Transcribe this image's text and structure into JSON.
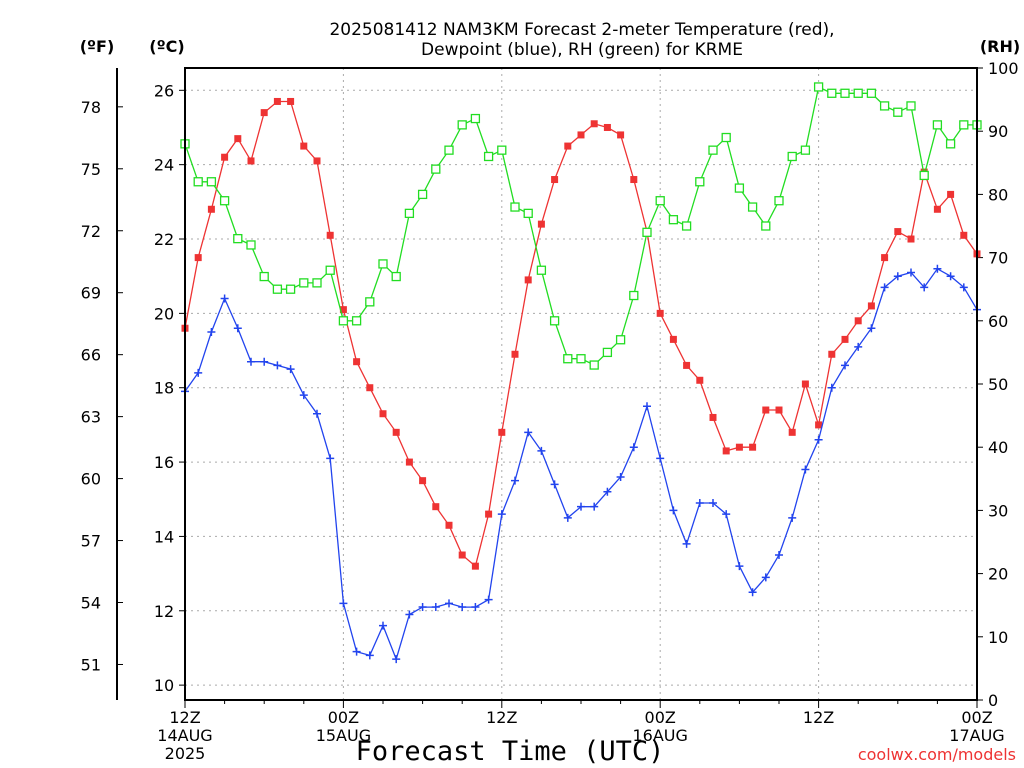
{
  "chart_data": {
    "type": "line",
    "title_line1": "2025081412 NAM3KM Forecast 2-meter Temperature (red),",
    "title_line2": "Dewpoint (blue), RH (green) for KRME",
    "xlabel": "Forecast Time (UTC)",
    "watermark": "coolwx.com/models",
    "unit_f": "(ºF)",
    "unit_c": "(ºC)",
    "unit_rh": "(RH)",
    "x_hours": [
      0,
      1,
      2,
      3,
      4,
      5,
      6,
      7,
      8,
      9,
      10,
      11,
      12,
      13,
      14,
      15,
      16,
      17,
      18,
      19,
      20,
      21,
      22,
      23,
      24,
      25,
      26,
      27,
      28,
      29,
      30,
      31,
      32,
      33,
      34,
      35,
      36,
      37,
      38,
      39,
      40,
      41,
      42,
      43,
      44,
      45,
      46,
      47,
      48,
      49,
      50,
      51,
      52,
      53,
      54,
      55,
      56,
      57,
      58,
      59,
      60
    ],
    "x_ticks": [
      {
        "hour": 0,
        "lines": [
          "12Z",
          "14AUG",
          "2025"
        ]
      },
      {
        "hour": 12,
        "lines": [
          "00Z",
          "15AUG"
        ]
      },
      {
        "hour": 24,
        "lines": [
          "12Z"
        ]
      },
      {
        "hour": 36,
        "lines": [
          "00Z",
          "16AUG"
        ]
      },
      {
        "hour": 48,
        "lines": [
          "12Z"
        ]
      },
      {
        "hour": 60,
        "lines": [
          "00Z",
          "17AUG"
        ]
      }
    ],
    "ylim_c": [
      9.6,
      26.6
    ],
    "yticks_c": [
      10,
      12,
      14,
      16,
      18,
      20,
      22,
      24,
      26
    ],
    "yticks_f": [
      51,
      54,
      57,
      60,
      63,
      66,
      69,
      72,
      75,
      78
    ],
    "ylim_rh": [
      0,
      100
    ],
    "yticks_rh": [
      0,
      10,
      20,
      30,
      40,
      50,
      60,
      70,
      80,
      90,
      100
    ],
    "grid": true,
    "series": [
      {
        "name": "Temperature",
        "color": "#ee3333",
        "axis": "celsius",
        "marker": "filled-square",
        "values": [
          19.6,
          21.5,
          22.8,
          24.2,
          24.7,
          24.1,
          25.4,
          25.7,
          25.7,
          24.5,
          24.1,
          22.1,
          20.1,
          18.7,
          18.0,
          17.3,
          16.8,
          16.0,
          15.5,
          14.8,
          14.3,
          13.5,
          13.2,
          14.6,
          16.8,
          18.9,
          20.9,
          22.4,
          23.6,
          24.5,
          24.8,
          25.1,
          25.0,
          24.8,
          23.6,
          22.2,
          20.0,
          19.3,
          18.6,
          18.2,
          17.2,
          16.3,
          16.4,
          16.4,
          17.4,
          17.4,
          16.8,
          18.1,
          17.0,
          18.9,
          19.3,
          19.8,
          20.2,
          21.5,
          22.2,
          22.0,
          23.8,
          22.8,
          23.2,
          22.1,
          21.6
        ]
      },
      {
        "name": "Dewpoint",
        "color": "#2244ee",
        "axis": "celsius",
        "marker": "plus",
        "values": [
          17.9,
          18.4,
          19.5,
          20.4,
          19.6,
          18.7,
          18.7,
          18.6,
          18.5,
          17.8,
          17.3,
          16.1,
          12.2,
          10.9,
          10.8,
          11.6,
          10.7,
          11.9,
          12.1,
          12.1,
          12.2,
          12.1,
          12.1,
          12.3,
          14.6,
          15.5,
          16.8,
          16.3,
          15.4,
          14.5,
          14.8,
          14.8,
          15.2,
          15.6,
          16.4,
          17.5,
          16.1,
          14.7,
          13.8,
          14.9,
          14.9,
          14.6,
          13.2,
          12.5,
          12.9,
          13.5,
          14.5,
          15.8,
          16.6,
          18.0,
          18.6,
          19.1,
          19.6,
          20.7,
          21.0,
          21.1,
          20.7,
          21.2,
          21.0,
          20.7,
          20.1
        ]
      },
      {
        "name": "RH",
        "color": "#22dd22",
        "axis": "rh",
        "marker": "open-square",
        "values": [
          88,
          82,
          82,
          79,
          73,
          72,
          67,
          65,
          65,
          66,
          66,
          68,
          60,
          60,
          63,
          69,
          67,
          77,
          80,
          84,
          87,
          91,
          92,
          86,
          87,
          78,
          77,
          68,
          60,
          54,
          54,
          53,
          55,
          57,
          64,
          74,
          79,
          76,
          75,
          82,
          87,
          89,
          81,
          78,
          75,
          79,
          86,
          87,
          97,
          96,
          96,
          96,
          96,
          94,
          93,
          94,
          83,
          91,
          88,
          91,
          91
        ]
      }
    ]
  }
}
